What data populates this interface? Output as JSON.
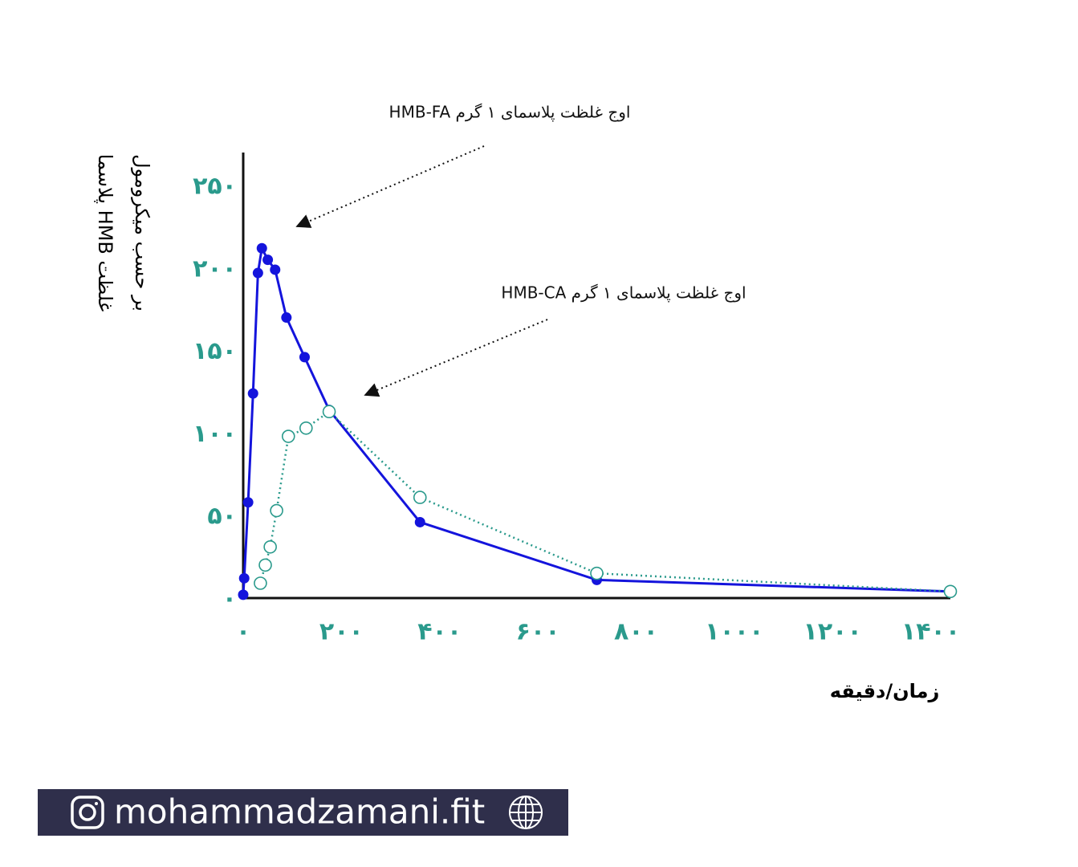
{
  "chart_data": {
    "type": "line",
    "y_label": [
      "غلظت HMB پلاسما",
      "بر حسب میکرومول"
    ],
    "x_label": "زمان/دقیقه",
    "annotations": [
      "اوج غلظت پلاسمای ۱ گرم HMB-FA",
      "اوج غلظت پلاسمای ۱ گرم HMB-CA"
    ],
    "xlim": [
      0,
      1440
    ],
    "ylim": [
      0,
      270
    ],
    "xticks": [
      {
        "value": 0,
        "label": "۰"
      },
      {
        "value": 200,
        "label": "۲۰۰"
      },
      {
        "value": 400,
        "label": "۴۰۰"
      },
      {
        "value": 600,
        "label": "۶۰۰"
      },
      {
        "value": 800,
        "label": "۸۰۰"
      },
      {
        "value": 1000,
        "label": "۱۰۰۰"
      },
      {
        "value": 1200,
        "label": "۱۲۰۰"
      },
      {
        "value": 1400,
        "label": "۱۴۰۰"
      }
    ],
    "yticks": [
      {
        "value": 0,
        "label": "۰"
      },
      {
        "value": 50,
        "label": "۵۰"
      },
      {
        "value": 100,
        "label": "۱۰۰"
      },
      {
        "value": 150,
        "label": "۱۵۰"
      },
      {
        "value": 200,
        "label": "۲۰۰"
      },
      {
        "value": 250,
        "label": "۲۵۰"
      }
    ],
    "series": [
      {
        "color": "#1414dc",
        "style": "solid",
        "marker": "filled",
        "x": [
          0,
          2,
          10,
          20,
          30,
          38,
          50,
          65,
          88,
          125,
          175,
          360,
          720,
          1440
        ],
        "values": [
          2,
          12,
          58,
          124,
          197,
          212,
          205,
          199,
          170,
          146,
          114,
          46,
          11,
          4
        ]
      },
      {
        "color": "#2a9a8c",
        "style": "dotted",
        "marker": "open",
        "x": [
          35,
          45,
          55,
          68,
          92,
          128,
          175,
          360,
          720,
          1440
        ],
        "values": [
          9,
          20,
          31,
          53,
          98,
          103,
          113,
          61,
          15,
          4
        ]
      }
    ]
  },
  "footer": "mohammadzamani.fit"
}
